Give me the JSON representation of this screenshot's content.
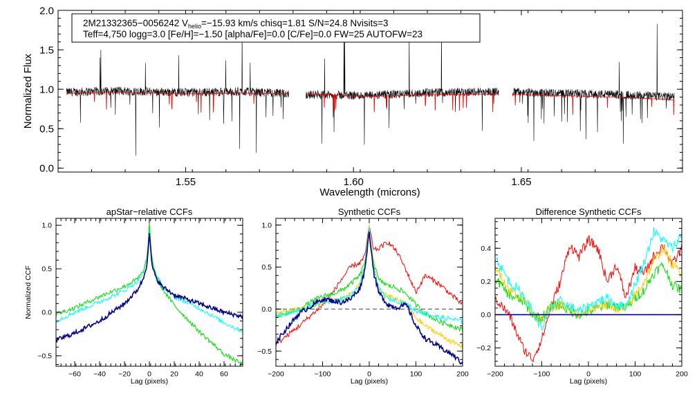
{
  "chart_data": [
    {
      "type": "line",
      "id": "spectrum",
      "title": "",
      "xlabel": "Wavelength (microns)",
      "ylabel": "Normalized Flux",
      "xlim": [
        1.512,
        1.698
      ],
      "ylim": [
        -0.05,
        2.0
      ],
      "xticks": [
        1.55,
        1.6,
        1.65
      ],
      "xtick_labels": [
        "1.55",
        "1.60",
        "1.65"
      ],
      "yticks": [
        0.0,
        0.5,
        1.0,
        1.5,
        2.0
      ],
      "ytick_labels": [
        "0.0",
        "0.5",
        "1.0",
        "1.5",
        "2.0"
      ],
      "chips": [
        [
          1.5145,
          1.5808
        ],
        [
          1.5858,
          1.6433
        ],
        [
          1.6474,
          1.6956
        ]
      ],
      "series": [
        {
          "name": "observed",
          "color": "#000000",
          "level": [
            0.96,
            0.98,
            0.96,
            0.97,
            0.93,
            0.92,
            0.96,
            0.97,
            0.95,
            0.93,
            0.9
          ]
        },
        {
          "name": "model",
          "color": "#ff0000",
          "level": [
            0.95,
            0.96,
            0.94,
            0.95,
            0.94,
            0.91,
            0.93,
            0.94,
            0.92,
            0.9,
            0.86
          ]
        }
      ],
      "legend": {
        "line1": "2M21332365−0056242  V",
        "line1_sub": "helio",
        "line1_rest": "=−15.93 km/s  chisq=1.81  S/N=24.8  Nvisits=3",
        "line2": "Teff=4,750 logg=3.0 [Fe/H]=−1.50 [alpha/Fe]=0.0 [C/Fe]=0.0 FW=25 AUTOFW=23"
      }
    },
    {
      "type": "line",
      "id": "apstar_ccf",
      "title": "apStar−relative CCFs",
      "xlabel": "Lag (pixels)",
      "ylabel": "Normalized CCF",
      "xlim": [
        -75,
        75
      ],
      "ylim": [
        -0.62,
        1.08
      ],
      "xticks": [
        -60,
        -40,
        -20,
        0,
        20,
        40,
        60
      ],
      "xtick_labels": [
        "−60",
        "−40",
        "−20",
        "0",
        "20",
        "40",
        "60"
      ],
      "yticks": [
        -0.5,
        0.0,
        0.5,
        1.0
      ],
      "ytick_labels": [
        "−0.5",
        "0.0",
        "0.5",
        "1.0"
      ],
      "series": [
        {
          "name": "visit-1",
          "color": "#00ffff",
          "x": [
            -75,
            -60,
            -40,
            -20,
            -10,
            -5,
            -2,
            0,
            2,
            5,
            10,
            20,
            40,
            60,
            75
          ],
          "y": [
            -0.1,
            0.0,
            0.12,
            0.25,
            0.35,
            0.45,
            0.6,
            0.95,
            0.6,
            0.45,
            0.3,
            0.18,
            0.05,
            -0.12,
            -0.22
          ]
        },
        {
          "name": "visit-2",
          "color": "#00dd00",
          "x": [
            -75,
            -60,
            -40,
            -20,
            -10,
            -5,
            -2,
            0,
            2,
            5,
            10,
            20,
            40,
            60,
            75
          ],
          "y": [
            -0.02,
            0.05,
            0.18,
            0.3,
            0.38,
            0.46,
            0.62,
            1.0,
            0.62,
            0.44,
            0.28,
            0.08,
            -0.22,
            -0.48,
            -0.6
          ]
        },
        {
          "name": "visit-3",
          "color": "#00008b",
          "x": [
            -75,
            -60,
            -40,
            -20,
            -10,
            -5,
            -2,
            0,
            2,
            5,
            10,
            20,
            40,
            60,
            75
          ],
          "y": [
            -0.32,
            -0.24,
            -0.1,
            0.1,
            0.25,
            0.38,
            0.55,
            0.9,
            0.55,
            0.4,
            0.3,
            0.2,
            0.1,
            0.0,
            -0.05
          ]
        }
      ]
    },
    {
      "type": "line",
      "id": "synthetic_ccf",
      "title": "Synthetic CCFs",
      "xlabel": "Lag (pixels)",
      "ylabel": "",
      "xlim": [
        -200,
        200
      ],
      "ylim": [
        -0.68,
        1.08
      ],
      "xticks": [
        -200,
        -100,
        0,
        100,
        200
      ],
      "xtick_labels": [
        "−200",
        "−100",
        "0",
        "100",
        "200"
      ],
      "yticks": [
        -0.5,
        0.0,
        0.5,
        1.0
      ],
      "ytick_labels": [
        "−0.5",
        "0.0",
        "0.5",
        "1.0"
      ],
      "zero_line": true,
      "series": [
        {
          "name": "red",
          "color": "#ff0000",
          "x": [
            -200,
            -150,
            -120,
            -100,
            -80,
            -60,
            -40,
            -20,
            -10,
            0,
            10,
            20,
            40,
            60,
            80,
            100,
            120,
            150,
            180,
            200
          ],
          "y": [
            -0.42,
            -0.2,
            -0.05,
            0.05,
            0.18,
            0.35,
            0.5,
            0.55,
            0.62,
            0.98,
            0.7,
            0.72,
            0.8,
            0.68,
            0.45,
            0.2,
            0.4,
            0.3,
            0.15,
            0.05
          ]
        },
        {
          "name": "green",
          "color": "#00dd00",
          "x": [
            -200,
            -150,
            -120,
            -100,
            -80,
            -60,
            -40,
            -20,
            -10,
            0,
            10,
            20,
            40,
            60,
            80,
            100,
            120,
            150,
            180,
            200
          ],
          "y": [
            -0.1,
            0.0,
            0.1,
            0.15,
            0.18,
            0.22,
            0.3,
            0.4,
            0.55,
            0.95,
            0.55,
            0.35,
            0.28,
            0.25,
            0.18,
            0.05,
            -0.05,
            -0.15,
            -0.2,
            -0.25
          ]
        },
        {
          "name": "yellow",
          "color": "#ffcc00",
          "x": [
            -200,
            -150,
            -120,
            -100,
            -80,
            -60,
            -40,
            -20,
            -10,
            0,
            10,
            20,
            40,
            60,
            80,
            100,
            120,
            150,
            180,
            200
          ],
          "y": [
            -0.05,
            0.0,
            0.05,
            0.08,
            0.1,
            0.12,
            0.18,
            0.3,
            0.5,
            0.98,
            0.5,
            0.25,
            0.15,
            0.12,
            0.05,
            -0.1,
            -0.2,
            -0.3,
            -0.4,
            -0.45
          ]
        },
        {
          "name": "cyan",
          "color": "#00ffff",
          "x": [
            -200,
            -150,
            -120,
            -100,
            -80,
            -60,
            -40,
            -20,
            -10,
            0,
            10,
            20,
            40,
            60,
            80,
            100,
            120,
            150,
            180,
            200
          ],
          "y": [
            -0.08,
            -0.02,
            0.05,
            0.08,
            0.1,
            0.12,
            0.15,
            0.28,
            0.5,
            0.95,
            0.48,
            0.24,
            0.12,
            0.1,
            0.06,
            -0.02,
            -0.05,
            -0.1,
            -0.12,
            -0.15
          ]
        },
        {
          "name": "navy",
          "color": "#00008b",
          "x": [
            -200,
            -180,
            -150,
            -120,
            -100,
            -80,
            -60,
            -40,
            -20,
            -10,
            0,
            10,
            20,
            40,
            60,
            80,
            100,
            120,
            150,
            180,
            200
          ],
          "y": [
            -0.4,
            -0.25,
            -0.05,
            0.05,
            0.12,
            0.1,
            0.08,
            0.12,
            0.25,
            0.45,
            0.92,
            0.42,
            0.2,
            0.05,
            0.02,
            0.05,
            -0.2,
            -0.35,
            -0.45,
            -0.55,
            -0.65
          ]
        }
      ]
    },
    {
      "type": "line",
      "id": "difference_ccf",
      "title": "Difference Synthetic CCFs",
      "xlabel": "Lag (pixels)",
      "ylabel": "",
      "xlim": [
        -200,
        200
      ],
      "ylim": [
        -0.31,
        0.58
      ],
      "xticks": [
        -200,
        -100,
        0,
        100,
        200
      ],
      "xtick_labels": [
        "−200",
        "−100",
        "0",
        "100",
        "200"
      ],
      "yticks": [
        -0.2,
        0.0,
        0.2,
        0.4
      ],
      "ytick_labels": [
        "−0.2",
        "0.0",
        "0.2",
        "0.4"
      ],
      "zero_line": true,
      "series": [
        {
          "name": "red",
          "color": "#ff0000",
          "x": [
            -200,
            -170,
            -140,
            -120,
            -100,
            -80,
            -60,
            -40,
            -20,
            0,
            20,
            40,
            60,
            80,
            100,
            120,
            140,
            160,
            180,
            200
          ],
          "y": [
            0.1,
            0.0,
            -0.2,
            -0.27,
            -0.15,
            0.05,
            0.2,
            0.42,
            0.35,
            0.45,
            0.4,
            0.2,
            0.3,
            0.1,
            0.28,
            0.25,
            0.35,
            0.42,
            0.3,
            0.4
          ]
        },
        {
          "name": "green",
          "color": "#00dd00",
          "x": [
            -200,
            -170,
            -140,
            -120,
            -100,
            -80,
            -60,
            -40,
            -20,
            0,
            20,
            40,
            60,
            80,
            100,
            120,
            140,
            160,
            180,
            200
          ],
          "y": [
            0.22,
            0.12,
            0.08,
            0.0,
            -0.02,
            0.05,
            0.06,
            0.02,
            0.0,
            0.02,
            0.04,
            0.06,
            0.05,
            0.04,
            0.1,
            0.15,
            0.25,
            0.3,
            0.18,
            0.15
          ]
        },
        {
          "name": "yellow",
          "color": "#ffcc00",
          "x": [
            -200,
            -170,
            -140,
            -120,
            -100,
            -80,
            -60,
            -40,
            -20,
            0,
            20,
            40,
            60,
            80,
            100,
            120,
            140,
            160,
            180,
            200
          ],
          "y": [
            0.3,
            0.15,
            0.1,
            0.02,
            -0.05,
            0.04,
            0.06,
            0.03,
            0.0,
            0.03,
            0.05,
            0.06,
            0.04,
            0.03,
            0.12,
            0.2,
            0.32,
            0.4,
            0.3,
            0.25
          ]
        },
        {
          "name": "cyan",
          "color": "#00ffff",
          "x": [
            -200,
            -170,
            -140,
            -120,
            -100,
            -80,
            -60,
            -40,
            -20,
            0,
            20,
            40,
            60,
            80,
            100,
            120,
            140,
            160,
            180,
            200
          ],
          "y": [
            0.35,
            0.2,
            0.12,
            0.02,
            -0.08,
            0.04,
            0.08,
            0.05,
            0.02,
            0.05,
            0.08,
            0.1,
            0.06,
            0.05,
            0.18,
            0.32,
            0.5,
            0.45,
            0.4,
            0.48
          ]
        },
        {
          "name": "navy",
          "color": "#00008b",
          "x": [
            -200,
            200
          ],
          "y": [
            0.0,
            0.0
          ]
        }
      ]
    }
  ]
}
